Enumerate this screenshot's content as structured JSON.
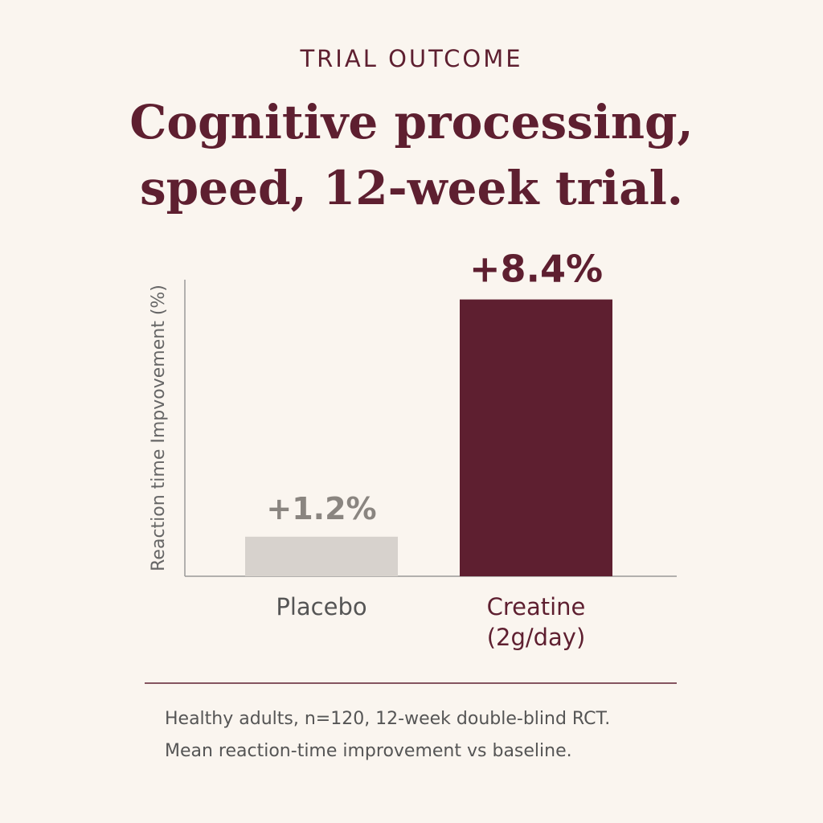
{
  "chart_data": {
    "type": "bar",
    "subtitle": "TRIAL OUTCOME",
    "title": [
      "Cognitive processing,",
      "speed, 12-week trial."
    ],
    "y_label": "Reaction time Impvovement (%)",
    "categories": [
      "Placebo",
      "Creatine (2g/day)"
    ],
    "values": [
      1.2,
      8.4
    ],
    "value_labels": [
      "+1.2%",
      "+8.4%"
    ],
    "colors": [
      "#d7d2cd",
      "#5e1f30"
    ],
    "ylim": [
      0,
      9
    ],
    "notes": [
      "Healthy adults, n=120, 12-week double-blind RCT.",
      "Mean reaction-time improvement vs baseline."
    ]
  }
}
